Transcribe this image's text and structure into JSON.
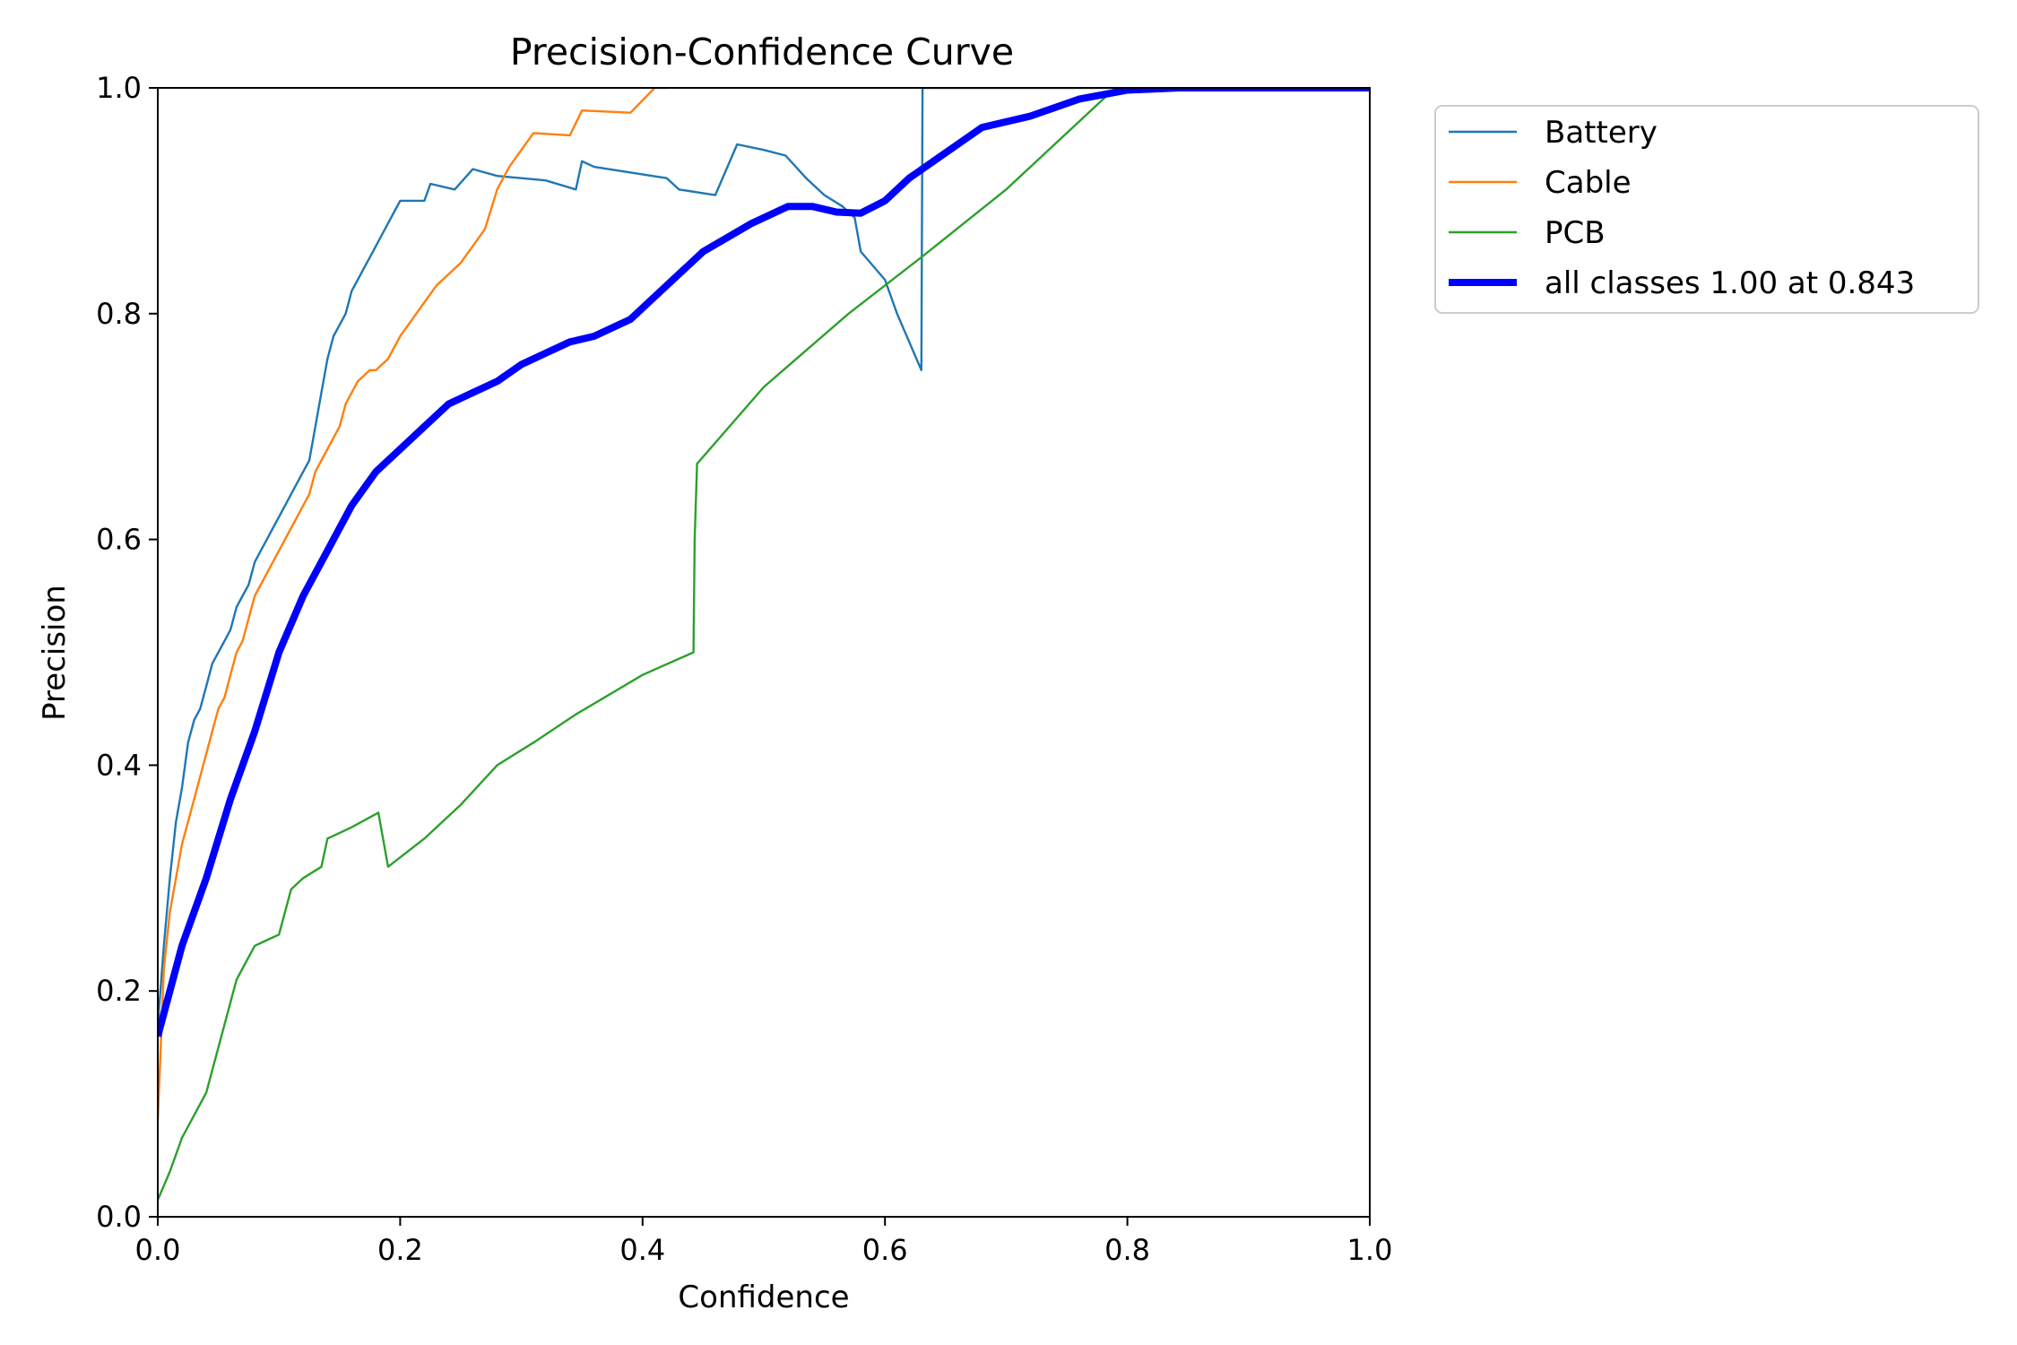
{
  "chart_data": {
    "type": "line",
    "title": "Precision-Confidence Curve",
    "xlabel": "Confidence",
    "ylabel": "Precision",
    "xlim": [
      0,
      1
    ],
    "ylim": [
      0,
      1
    ],
    "xticks": [
      "0.0",
      "0.2",
      "0.4",
      "0.6",
      "0.8",
      "1.0"
    ],
    "yticks": [
      "0.0",
      "0.2",
      "0.4",
      "0.6",
      "0.8",
      "1.0"
    ],
    "grid": false,
    "legend_position": "outside top-right",
    "series": [
      {
        "name": "Battery",
        "color": "#1f77b4",
        "width": "thin",
        "x": [
          0.0,
          0.005,
          0.01,
          0.015,
          0.02,
          0.025,
          0.03,
          0.035,
          0.04,
          0.045,
          0.05,
          0.055,
          0.06,
          0.065,
          0.07,
          0.075,
          0.08,
          0.085,
          0.09,
          0.095,
          0.1,
          0.105,
          0.11,
          0.115,
          0.12,
          0.125,
          0.13,
          0.135,
          0.14,
          0.145,
          0.15,
          0.155,
          0.16,
          0.165,
          0.17,
          0.175,
          0.18,
          0.185,
          0.19,
          0.195,
          0.2,
          0.22,
          0.225,
          0.245,
          0.26,
          0.27,
          0.28,
          0.32,
          0.345,
          0.35,
          0.36,
          0.42,
          0.43,
          0.46,
          0.478,
          0.5,
          0.518,
          0.535,
          0.55,
          0.565,
          0.575,
          0.58,
          0.6,
          0.61,
          0.63,
          0.631,
          0.632,
          1.0
        ],
        "y": [
          0.17,
          0.24,
          0.3,
          0.35,
          0.38,
          0.42,
          0.44,
          0.45,
          0.47,
          0.49,
          0.5,
          0.51,
          0.52,
          0.54,
          0.55,
          0.56,
          0.58,
          0.59,
          0.6,
          0.61,
          0.62,
          0.63,
          0.64,
          0.65,
          0.66,
          0.67,
          0.7,
          0.73,
          0.76,
          0.78,
          0.79,
          0.8,
          0.82,
          0.83,
          0.84,
          0.85,
          0.86,
          0.87,
          0.88,
          0.89,
          0.9,
          0.9,
          0.915,
          0.91,
          0.928,
          0.925,
          0.922,
          0.918,
          0.91,
          0.935,
          0.93,
          0.92,
          0.91,
          0.905,
          0.95,
          0.945,
          0.94,
          0.92,
          0.905,
          0.895,
          0.885,
          0.855,
          0.83,
          0.8,
          0.75,
          1.0,
          1.0,
          1.0
        ]
      },
      {
        "name": "Cable",
        "color": "#ff7f0e",
        "width": "thin",
        "x": [
          0.0,
          0.005,
          0.01,
          0.015,
          0.02,
          0.025,
          0.03,
          0.035,
          0.04,
          0.045,
          0.05,
          0.055,
          0.06,
          0.065,
          0.07,
          0.075,
          0.08,
          0.085,
          0.09,
          0.095,
          0.1,
          0.105,
          0.11,
          0.115,
          0.12,
          0.125,
          0.13,
          0.135,
          0.14,
          0.145,
          0.15,
          0.155,
          0.16,
          0.165,
          0.17,
          0.175,
          0.18,
          0.19,
          0.2,
          0.21,
          0.22,
          0.23,
          0.24,
          0.25,
          0.26,
          0.27,
          0.28,
          0.29,
          0.3,
          0.31,
          0.34,
          0.35,
          0.39,
          0.41,
          0.415,
          0.42
        ],
        "y": [
          0.085,
          0.22,
          0.27,
          0.3,
          0.33,
          0.35,
          0.37,
          0.39,
          0.41,
          0.43,
          0.45,
          0.46,
          0.48,
          0.5,
          0.51,
          0.53,
          0.55,
          0.56,
          0.57,
          0.58,
          0.59,
          0.6,
          0.61,
          0.62,
          0.63,
          0.64,
          0.66,
          0.67,
          0.68,
          0.69,
          0.7,
          0.72,
          0.73,
          0.74,
          0.745,
          0.75,
          0.75,
          0.76,
          0.78,
          0.795,
          0.81,
          0.825,
          0.835,
          0.845,
          0.86,
          0.875,
          0.91,
          0.93,
          0.945,
          0.96,
          0.958,
          0.98,
          0.978,
          1.0,
          1.0,
          1.0
        ]
      },
      {
        "name": "PCB",
        "color": "#2ca02c",
        "width": "thin",
        "x": [
          0.0,
          0.01,
          0.02,
          0.03,
          0.04,
          0.05,
          0.06,
          0.065,
          0.07,
          0.08,
          0.09,
          0.1,
          0.11,
          0.12,
          0.135,
          0.14,
          0.16,
          0.182,
          0.19,
          0.22,
          0.25,
          0.28,
          0.31,
          0.345,
          0.4,
          0.442,
          0.443,
          0.445,
          0.5,
          0.57,
          0.63,
          0.7,
          0.79,
          0.8,
          1.0
        ],
        "y": [
          0.015,
          0.04,
          0.07,
          0.09,
          0.11,
          0.15,
          0.19,
          0.21,
          0.22,
          0.24,
          0.245,
          0.25,
          0.29,
          0.3,
          0.31,
          0.335,
          0.345,
          0.358,
          0.31,
          0.335,
          0.365,
          0.4,
          0.42,
          0.445,
          0.48,
          0.5,
          0.6,
          0.667,
          0.735,
          0.8,
          0.85,
          0.91,
          1.0,
          1.0,
          1.0
        ]
      },
      {
        "name": "all classes 1.00 at 0.843",
        "color": "#0000ff",
        "width": "thick",
        "x": [
          0.0,
          0.02,
          0.04,
          0.06,
          0.08,
          0.1,
          0.12,
          0.14,
          0.16,
          0.18,
          0.2,
          0.22,
          0.24,
          0.26,
          0.28,
          0.3,
          0.32,
          0.34,
          0.36,
          0.38,
          0.39,
          0.42,
          0.45,
          0.49,
          0.52,
          0.54,
          0.56,
          0.58,
          0.6,
          0.62,
          0.64,
          0.66,
          0.68,
          0.72,
          0.76,
          0.8,
          0.843,
          0.9,
          1.0
        ],
        "y": [
          0.16,
          0.24,
          0.3,
          0.37,
          0.43,
          0.5,
          0.55,
          0.59,
          0.63,
          0.66,
          0.68,
          0.7,
          0.72,
          0.73,
          0.74,
          0.755,
          0.765,
          0.775,
          0.78,
          0.79,
          0.795,
          0.825,
          0.855,
          0.88,
          0.895,
          0.895,
          0.89,
          0.889,
          0.9,
          0.92,
          0.935,
          0.95,
          0.965,
          0.975,
          0.99,
          0.998,
          1.0,
          1.0,
          1.0
        ]
      }
    ]
  }
}
